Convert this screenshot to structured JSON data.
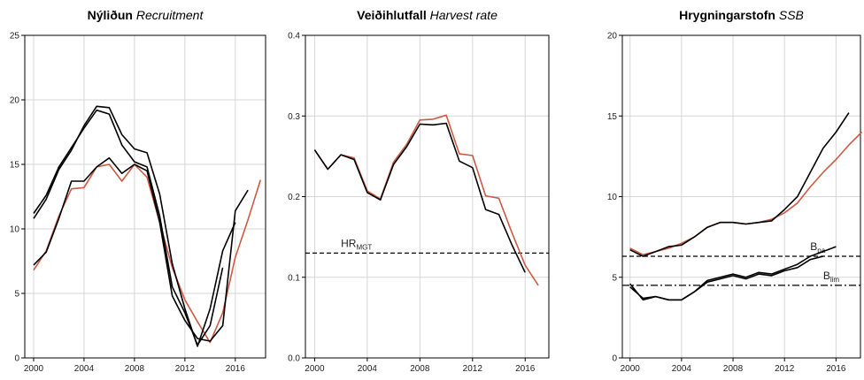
{
  "chart_data": [
    {
      "type": "line",
      "title": "Nýliðun",
      "title_italic": "Recruitment",
      "x": [
        2000,
        2001,
        2002,
        2003,
        2004,
        2005,
        2006,
        2007,
        2008,
        2009,
        2010,
        2011,
        2012,
        2013,
        2014,
        2015,
        2016,
        2017,
        2018
      ],
      "series": [
        {
          "color": "#cd5a44",
          "values": [
            6.8,
            8.3,
            11.0,
            13.1,
            13.2,
            14.8,
            15.0,
            13.7,
            15.0,
            14.0,
            10.5,
            7.0,
            4.5,
            2.8,
            1.2,
            3.5,
            7.8,
            10.7,
            13.8
          ]
        },
        {
          "color": "#000000",
          "values": [
            10.8,
            12.3,
            14.6,
            16.1,
            18.0,
            19.5,
            19.4,
            17.3,
            16.2,
            15.9,
            12.7,
            7.3,
            3.8,
            0.9,
            3.8,
            8.3,
            10.5,
            null,
            null
          ]
        },
        {
          "color": "#000000",
          "values": [
            11.2,
            12.6,
            14.8,
            16.3,
            17.8,
            19.2,
            18.9,
            16.5,
            15.2,
            14.8,
            11.0,
            5.5,
            3.5,
            1.0,
            2.5,
            7.0,
            null,
            null,
            null
          ]
        },
        {
          "color": "#000000",
          "values": [
            7.2,
            8.2,
            10.8,
            13.7,
            13.7,
            14.8,
            15.5,
            14.3,
            15.0,
            14.5,
            10.5,
            4.8,
            2.9,
            1.5,
            1.3,
            2.5,
            11.4,
            13.0,
            null
          ]
        }
      ],
      "xlim": [
        1999.3,
        2018.4
      ],
      "xticks": [
        2000,
        2004,
        2008,
        2012,
        2016
      ],
      "ylim": [
        0,
        25
      ],
      "yticks": [
        0,
        5,
        10,
        15,
        20,
        25
      ],
      "grid": true
    },
    {
      "type": "line",
      "title": "Veiðihlutfall",
      "title_italic": "Harvest rate",
      "x": [
        2000,
        2001,
        2002,
        2003,
        2004,
        2005,
        2006,
        2007,
        2008,
        2009,
        2010,
        2011,
        2012,
        2013,
        2014,
        2015,
        2016,
        2017
      ],
      "series": [
        {
          "color": "#cd5a44",
          "values": [
            0.258,
            0.234,
            0.252,
            0.248,
            0.207,
            0.197,
            0.243,
            0.265,
            0.295,
            0.296,
            0.301,
            0.253,
            0.251,
            0.201,
            0.198,
            0.155,
            0.115,
            0.09
          ]
        },
        {
          "color": "#000000",
          "values": [
            0.258,
            0.234,
            0.252,
            0.246,
            0.205,
            0.196,
            0.24,
            0.262,
            0.29,
            0.289,
            0.291,
            0.244,
            0.236,
            0.184,
            0.178,
            0.14,
            0.106,
            null
          ]
        }
      ],
      "hlines": [
        {
          "value": 0.13,
          "text": "HR",
          "sub": "MGT",
          "style": "dashed",
          "label_x": 2002
        }
      ],
      "xlim": [
        1999.3,
        2017.8
      ],
      "xticks": [
        2000,
        2004,
        2008,
        2012,
        2016
      ],
      "ylim": [
        0,
        0.4
      ],
      "yticks": [
        {
          "value": 0,
          "label": "0.0"
        },
        0.1,
        0.2,
        0.3,
        0.4
      ],
      "grid": true
    },
    {
      "type": "line",
      "title": "Hrygningarstofn",
      "title_italic": "SSB",
      "x": [
        2000,
        2001,
        2002,
        2003,
        2004,
        2005,
        2006,
        2007,
        2008,
        2009,
        2010,
        2011,
        2012,
        2013,
        2014,
        2015,
        2016,
        2017,
        2018
      ],
      "series": [
        {
          "color": "#cd5a44",
          "values": [
            6.8,
            6.4,
            6.6,
            6.8,
            7.1,
            7.5,
            8.1,
            8.4,
            8.4,
            8.3,
            8.4,
            8.6,
            9.0,
            9.6,
            10.6,
            11.5,
            12.3,
            13.2,
            14.0
          ]
        },
        {
          "color": "#000000",
          "values": [
            6.7,
            6.3,
            6.6,
            6.9,
            7.0,
            7.5,
            8.1,
            8.4,
            8.4,
            8.3,
            8.4,
            8.5,
            9.2,
            10.0,
            11.5,
            13.0,
            14.0,
            15.2,
            null
          ]
        },
        {
          "color": "#000000",
          "values": [
            4.6,
            3.6,
            3.8,
            3.6,
            3.6,
            4.1,
            4.8,
            5.0,
            5.2,
            5.0,
            5.3,
            5.2,
            5.5,
            5.8,
            6.3,
            6.6,
            6.9,
            null,
            null
          ]
        },
        {
          "color": "#000000",
          "values": [
            4.4,
            3.7,
            3.8,
            3.6,
            3.6,
            4.1,
            4.7,
            4.9,
            5.1,
            4.9,
            5.2,
            5.1,
            5.4,
            5.6,
            6.1,
            6.3,
            null,
            null,
            null
          ]
        }
      ],
      "hlines": [
        {
          "value": 6.3,
          "text": "B",
          "sub": "pa",
          "style": "dashed",
          "label_x": 2014
        },
        {
          "value": 4.5,
          "text": "B",
          "sub": "lim",
          "style": "dashdot",
          "label_x": 2015
        }
      ],
      "xlim": [
        1999.4,
        2017.9
      ],
      "xticks": [
        2000,
        2004,
        2008,
        2012,
        2016
      ],
      "ylim": [
        0,
        20
      ],
      "yticks": [
        0,
        5,
        10,
        15,
        20
      ],
      "grid": true
    }
  ]
}
